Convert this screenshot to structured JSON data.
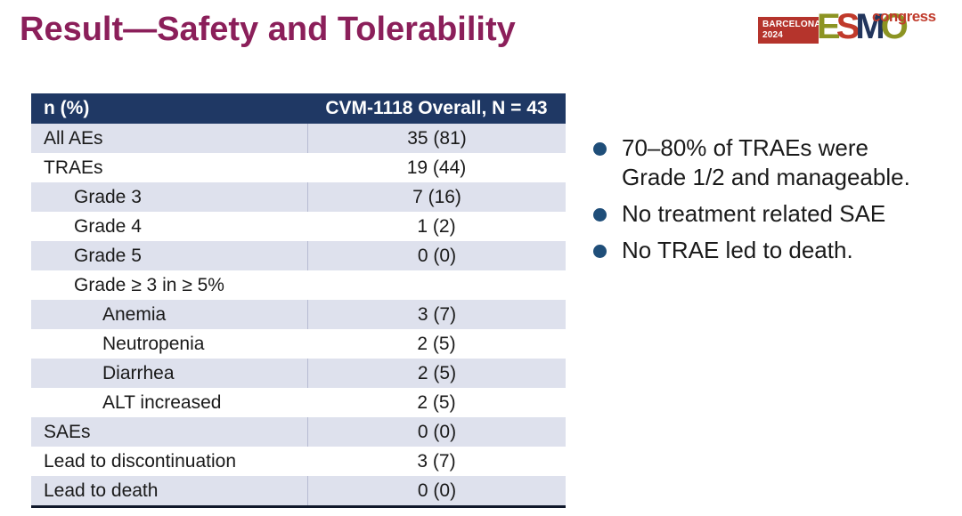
{
  "slide": {
    "title": "Result—Safety and Tolerability"
  },
  "logo": {
    "venue": "BARCELONA",
    "year": "2024",
    "letters": [
      {
        "char": "E",
        "color": "#8C9423"
      },
      {
        "char": "S",
        "color": "#C03A2B"
      },
      {
        "char": "M",
        "color": "#22355C"
      },
      {
        "char": "O",
        "color": "#8C9423"
      }
    ],
    "congress_label": "congress"
  },
  "table": {
    "header": {
      "label_col": "n (%)",
      "value_col": "CVM-1118 Overall, N = 43"
    },
    "rows": [
      {
        "label": "All AEs",
        "value": "35 (81)",
        "indent": 0
      },
      {
        "label": "TRAEs",
        "value": "19 (44)",
        "indent": 0
      },
      {
        "label": "Grade 3",
        "value": "7 (16)",
        "indent": 1
      },
      {
        "label": "Grade 4",
        "value": "1 (2)",
        "indent": 1
      },
      {
        "label": "Grade 5",
        "value": "0 (0)",
        "indent": 1
      },
      {
        "label": "Grade ≥ 3 in ≥ 5%",
        "value": "",
        "indent": 1
      },
      {
        "label": "Anemia",
        "value": "3 (7)",
        "indent": 2
      },
      {
        "label": "Neutropenia",
        "value": "2 (5)",
        "indent": 2
      },
      {
        "label": "Diarrhea",
        "value": "2 (5)",
        "indent": 2
      },
      {
        "label": "ALT increased",
        "value": "2 (5)",
        "indent": 2
      },
      {
        "label": "SAEs",
        "value": "0 (0)",
        "indent": 0
      },
      {
        "label": "Lead to discontinuation",
        "value": "3 (7)",
        "indent": 0
      },
      {
        "label": "Lead to death",
        "value": "0 (0)",
        "indent": 0
      }
    ]
  },
  "bullets": [
    "70–80% of TRAEs were Grade 1/2 and manageable.",
    "No treatment related SAE",
    "No TRAE led to death."
  ],
  "colors": {
    "title": "#8B1F5A",
    "table_header_bg": "#1F3864",
    "table_header_text": "#FFFFFF",
    "row_alt_bg": "#DEE1ED",
    "row_divider": "#B7BCD2",
    "table_bottom_border": "#10182B",
    "bullet_dot": "#1F4E79",
    "logo_box_bg": "#B5342C",
    "logo_congress": "#C03A2B",
    "body_text": "#1A1A1A"
  }
}
